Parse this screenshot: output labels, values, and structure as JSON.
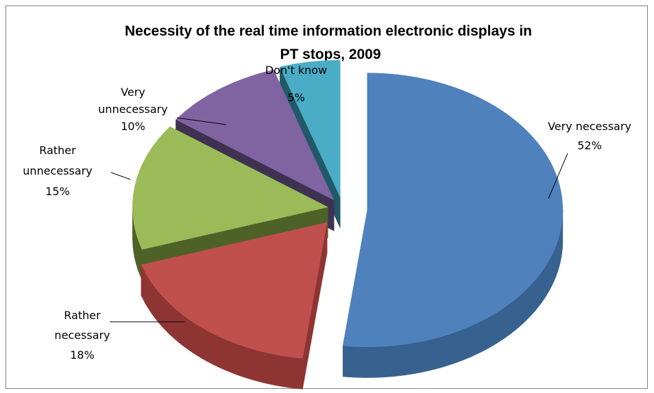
{
  "chart_data": {
    "type": "pie",
    "title_lines": [
      "Necessity of the real time information electronic displays in",
      "PT stops, 2009"
    ],
    "slices": [
      {
        "name": "Very necessary",
        "label_lines": [
          "Very necessary",
          "52%"
        ],
        "value": 52,
        "color": "#4f81bd",
        "side": "#37628f"
      },
      {
        "name": "Rather necessary",
        "label_lines": [
          "Rather",
          "necessary",
          "18%"
        ],
        "value": 18,
        "color": "#c0504d",
        "side": "#8e3533"
      },
      {
        "name": "Rather unnecessary",
        "label_lines": [
          "Rather",
          "unnecessary",
          "15%"
        ],
        "value": 15,
        "color": "#9bbb59",
        "side": "#4e6228"
      },
      {
        "name": "Very unnecessary",
        "label_lines": [
          "Very",
          "unnecessary",
          "10%"
        ],
        "value": 10,
        "color": "#8064a2",
        "side": "#3f3151"
      },
      {
        "name": "Don't know",
        "label_lines": [
          "Don't know",
          "5%"
        ],
        "value": 5,
        "color": "#4bacc6",
        "side": "#215968"
      }
    ]
  }
}
